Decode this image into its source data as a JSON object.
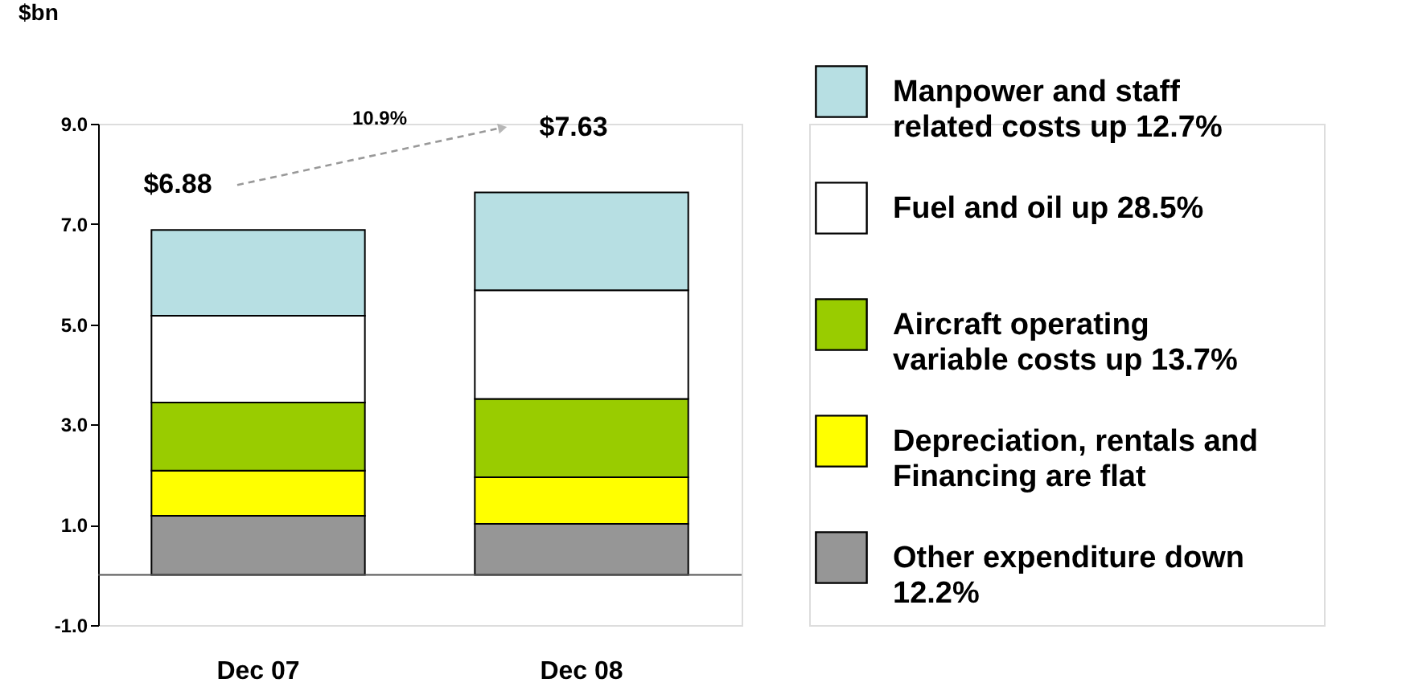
{
  "chart_data": {
    "type": "bar",
    "stacked": true,
    "ylabel": "$bn",
    "categories": [
      "Dec 07",
      "Dec 08"
    ],
    "series": [
      {
        "name": "Other expenditure down 12.2%",
        "color": "#969696",
        "values": [
          1.18,
          1.02
        ]
      },
      {
        "name": "Depreciation, rentals and Financing are flat",
        "color": "#ffff00",
        "values": [
          0.9,
          0.93
        ]
      },
      {
        "name": "Aircraft operating variable costs up 13.7%",
        "color": "#99cc00",
        "values": [
          1.36,
          1.56
        ]
      },
      {
        "name": "Fuel and oil up 28.5%",
        "color": "#ffffff",
        "values": [
          1.73,
          2.17
        ]
      },
      {
        "name": "Manpower and staff related costs up 12.7%",
        "color": "#b7dfe3",
        "values": [
          1.71,
          1.95
        ]
      }
    ],
    "totals": [
      "$6.88",
      "$7.63"
    ],
    "annotations": [
      "10.9%"
    ],
    "ylim": [
      -1,
      9
    ],
    "yticks": [
      {
        "value": -1,
        "label": "-1.0"
      },
      {
        "value": 1,
        "label": "1.0"
      },
      {
        "value": 3,
        "label": "3.0"
      },
      {
        "value": 5,
        "label": "5.0"
      },
      {
        "value": 7,
        "label": "7.0"
      },
      {
        "value": 9,
        "label": "9.0"
      }
    ],
    "grid": false,
    "legend": "right"
  }
}
